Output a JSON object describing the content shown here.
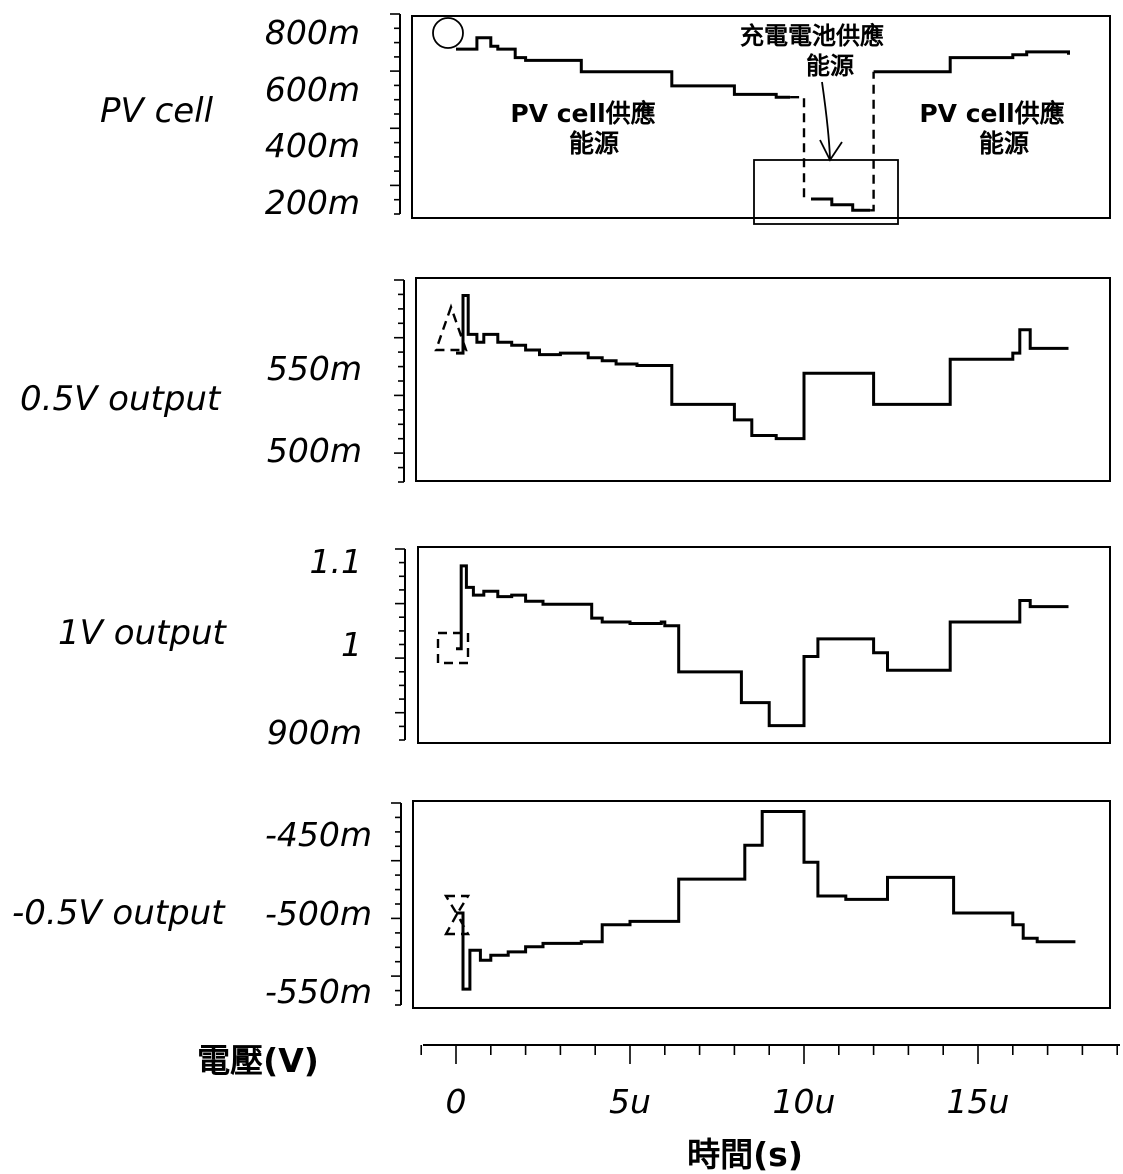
{
  "chart_data": [
    {
      "type": "line",
      "name_label": "PV cell",
      "y_ticks": [
        "800m",
        "600m",
        "400m",
        "200m"
      ],
      "ylim": [
        0.17,
        0.87
      ],
      "annotations": [
        "充電電池供應",
        "能源",
        "PV cell供應",
        "能源",
        "PV cell供應",
        "能源"
      ],
      "x": [
        0,
        0.4,
        0.6,
        1.0,
        1.2,
        1.7,
        2.0,
        3.2,
        3.6,
        6.0,
        6.2,
        7.8,
        8.0,
        9.2,
        9.6,
        10.2,
        10.8,
        11.4,
        11.9,
        12.0,
        14.0,
        14.2,
        16.0,
        16.4,
        17.6
      ],
      "values": [
        0.76,
        0.76,
        0.8,
        0.77,
        0.76,
        0.73,
        0.72,
        0.72,
        0.68,
        0.68,
        0.63,
        0.63,
        0.6,
        0.59,
        0.59,
        0.23,
        0.21,
        0.19,
        0.19,
        0.68,
        0.68,
        0.73,
        0.74,
        0.75,
        0.74
      ]
    },
    {
      "type": "line",
      "name_label": "0.5V output",
      "y_ticks": [
        "550m",
        "500m"
      ],
      "ylim": [
        0.472,
        0.6
      ],
      "x": [
        0,
        0.2,
        0.35,
        0.6,
        0.8,
        1.2,
        1.6,
        2.0,
        2.4,
        3.0,
        3.8,
        4.2,
        4.6,
        5.2,
        6.0,
        6.2,
        7.8,
        8.0,
        8.5,
        9.2,
        9.9,
        10.0,
        11.8,
        12.0,
        14.0,
        14.2,
        16.0,
        16.2,
        16.5,
        17.6
      ],
      "values": [
        0.553,
        0.59,
        0.565,
        0.56,
        0.565,
        0.56,
        0.558,
        0.555,
        0.552,
        0.553,
        0.55,
        0.548,
        0.546,
        0.545,
        0.545,
        0.52,
        0.52,
        0.51,
        0.5,
        0.498,
        0.498,
        0.54,
        0.54,
        0.52,
        0.52,
        0.549,
        0.553,
        0.568,
        0.556,
        0.556
      ]
    },
    {
      "type": "line",
      "name_label": "1V output",
      "y_ticks": [
        "1.1",
        "1",
        "900m"
      ],
      "ylim": [
        0.88,
        1.13
      ],
      "x": [
        0,
        0.15,
        0.3,
        0.5,
        0.8,
        1.2,
        1.6,
        2.0,
        2.5,
        3.0,
        3.9,
        4.2,
        5.0,
        5.9,
        6.0,
        6.4,
        7.8,
        8.2,
        9.0,
        9.9,
        10.0,
        10.4,
        11.9,
        12.0,
        12.4,
        14.0,
        14.2,
        16.0,
        16.2,
        16.5,
        17.6
      ],
      "values": [
        1.0,
        1.108,
        1.08,
        1.07,
        1.075,
        1.068,
        1.07,
        1.062,
        1.058,
        1.058,
        1.04,
        1.035,
        1.033,
        1.035,
        1.03,
        0.97,
        0.97,
        0.93,
        0.9,
        0.9,
        0.99,
        1.013,
        1.013,
        0.995,
        0.972,
        0.972,
        1.035,
        1.035,
        1.063,
        1.055,
        1.055
      ]
    },
    {
      "type": "line",
      "name_label": "-0.5V output",
      "y_ticks": [
        "-450m",
        "-500m",
        "-550m"
      ],
      "ylim": [
        -0.555,
        -0.435
      ],
      "x": [
        0,
        0.2,
        0.4,
        0.7,
        1.0,
        1.5,
        2.0,
        2.5,
        3.0,
        3.6,
        4.2,
        5.0,
        6.0,
        6.4,
        8.0,
        8.3,
        8.8,
        9.8,
        10.0,
        10.4,
        11.2,
        12.0,
        12.4,
        14.0,
        14.3,
        16.0,
        16.3,
        16.7,
        17.8
      ],
      "values": [
        -0.5,
        -0.545,
        -0.522,
        -0.528,
        -0.525,
        -0.523,
        -0.52,
        -0.518,
        -0.518,
        -0.517,
        -0.507,
        -0.505,
        -0.505,
        -0.48,
        -0.48,
        -0.46,
        -0.44,
        -0.44,
        -0.47,
        -0.49,
        -0.492,
        -0.492,
        -0.479,
        -0.479,
        -0.5,
        -0.507,
        -0.515,
        -0.517,
        -0.517
      ]
    }
  ],
  "x_axis": {
    "ticks": [
      "0",
      "5u",
      "10u",
      "15u"
    ],
    "tick_values": [
      0,
      5,
      10,
      15
    ],
    "xlim": [
      -1.0,
      19.0
    ],
    "xlabel": "時間(s)"
  },
  "ylabel": "電壓(V)"
}
